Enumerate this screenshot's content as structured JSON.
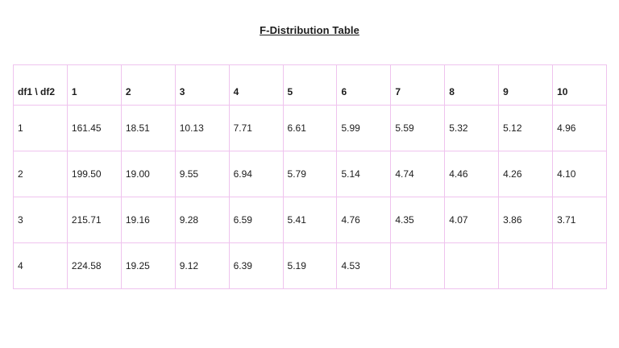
{
  "title": "F-Distribution Table",
  "table": {
    "corner_label": "df1 \\ df2",
    "col_headers": [
      "1",
      "2",
      "3",
      "4",
      "5",
      "6",
      "7",
      "8",
      "9",
      "10"
    ],
    "rows": [
      {
        "label": "1",
        "values": [
          "161.45",
          "18.51",
          "10.13",
          "7.71",
          "6.61",
          "5.99",
          "5.59",
          "5.32",
          "5.12",
          "4.96"
        ]
      },
      {
        "label": "2",
        "values": [
          "199.50",
          "19.00",
          "9.55",
          "6.94",
          "5.79",
          "5.14",
          "4.74",
          "4.46",
          "4.26",
          "4.10"
        ]
      },
      {
        "label": "3",
        "values": [
          "215.71",
          "19.16",
          "9.28",
          "6.59",
          "5.41",
          "4.76",
          "4.35",
          "4.07",
          "3.86",
          "3.71"
        ]
      },
      {
        "label": "4",
        "values": [
          "224.58",
          "19.25",
          "9.12",
          "6.39",
          "5.19",
          "4.53",
          "",
          "",
          "",
          ""
        ]
      }
    ]
  },
  "colors": {
    "border_pink": "#EFC3EE",
    "border_lavender": "#CBB7E8",
    "border_blue": "#9CC9E8",
    "border_gray": "#7F7F7F",
    "text": "#1C1C1C",
    "background": "#FFFFFF"
  }
}
